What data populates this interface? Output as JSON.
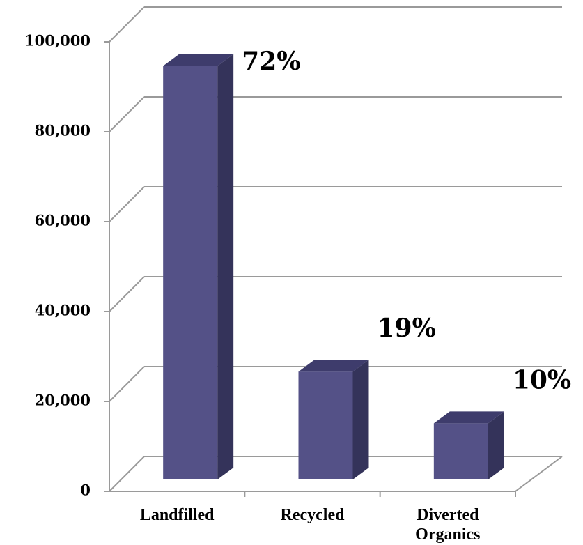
{
  "chart_data": {
    "type": "bar3d",
    "categories": [
      "Landfilled",
      "Recycled",
      "Diverted Organics"
    ],
    "values": [
      92000,
      24000,
      12500
    ],
    "annotations": [
      "72%",
      "19%",
      "10%"
    ],
    "color": "#545187",
    "ylim": [
      0,
      100000
    ],
    "yticks": [
      0,
      {
        "value": 20000,
        "label": "20,000"
      },
      {
        "value": 40000,
        "label": "40,000"
      },
      {
        "value": 60000,
        "label": "60,000"
      },
      {
        "value": 80000,
        "label": "80,000"
      },
      {
        "value": 100000,
        "label": "100,000"
      }
    ],
    "grid": true
  }
}
